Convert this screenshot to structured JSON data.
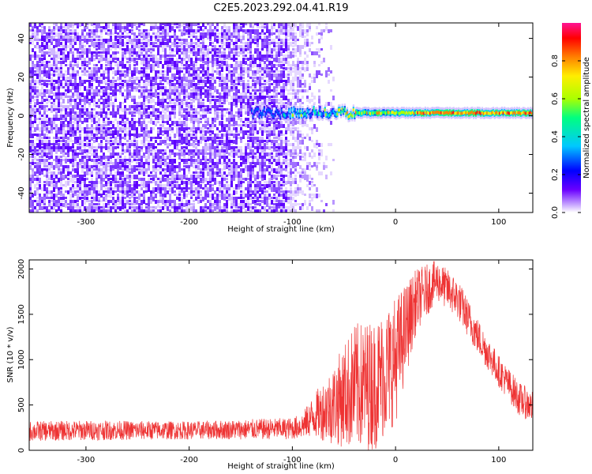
{
  "title": "C2E5.2023.292.04.41.R19",
  "chart_data": [
    {
      "type": "heatmap",
      "title": "C2E5.2023.292.04.41.R19",
      "xlabel": "Height of straight line (km)",
      "ylabel": "Frequency (Hz)",
      "xlim": [
        -355,
        133
      ],
      "ylim": [
        -50,
        48
      ],
      "x_ticks": [
        -300,
        -200,
        -100,
        0,
        100
      ],
      "y_ticks": [
        -40,
        -20,
        0,
        20,
        40
      ],
      "colorbar": {
        "label": "Normalized spectral amplitude",
        "range": [
          0,
          1
        ],
        "ticks": [
          0.0,
          0.2,
          0.4,
          0.6,
          0.8
        ],
        "colors": [
          "#ffffff",
          "#c9a8ff",
          "#6a00ff",
          "#0000ff",
          "#00c8ff",
          "#00ff80",
          "#aaff00",
          "#ffee00",
          "#ff8000",
          "#ff0000",
          "#ff1493"
        ]
      },
      "regions": [
        {
          "description": "broadband noise",
          "x_range": [
            -355,
            -75
          ],
          "freq_range": [
            -50,
            48
          ],
          "amplitude": "0.1-0.25"
        },
        {
          "description": "signal line",
          "x_range": [
            -140,
            133
          ],
          "freq_center": 1.5,
          "amplitude_peak": 0.9
        }
      ],
      "grid": false
    },
    {
      "type": "line",
      "xlabel": "Height of straight line (km)",
      "ylabel": "SNR (10 * v/v)",
      "xlim": [
        -355,
        133
      ],
      "ylim": [
        0,
        2100
      ],
      "x_ticks": [
        -300,
        -200,
        -100,
        0,
        100
      ],
      "y_ticks": [
        0,
        500,
        1000,
        1500,
        2000
      ],
      "color": "#ee3333",
      "envelope": {
        "x": [
          -355,
          -300,
          -200,
          -100,
          -90,
          -80,
          -60,
          -40,
          -20,
          0,
          20,
          40,
          60,
          80,
          100,
          120,
          133
        ],
        "low": [
          100,
          110,
          120,
          120,
          130,
          150,
          60,
          0,
          0,
          300,
          1300,
          1650,
          1450,
          1050,
          700,
          380,
          300
        ],
        "high": [
          320,
          330,
          320,
          360,
          420,
          600,
          950,
          1400,
          1450,
          1700,
          2000,
          2100,
          1900,
          1450,
          1050,
          750,
          650
        ]
      },
      "grid": false
    }
  ]
}
